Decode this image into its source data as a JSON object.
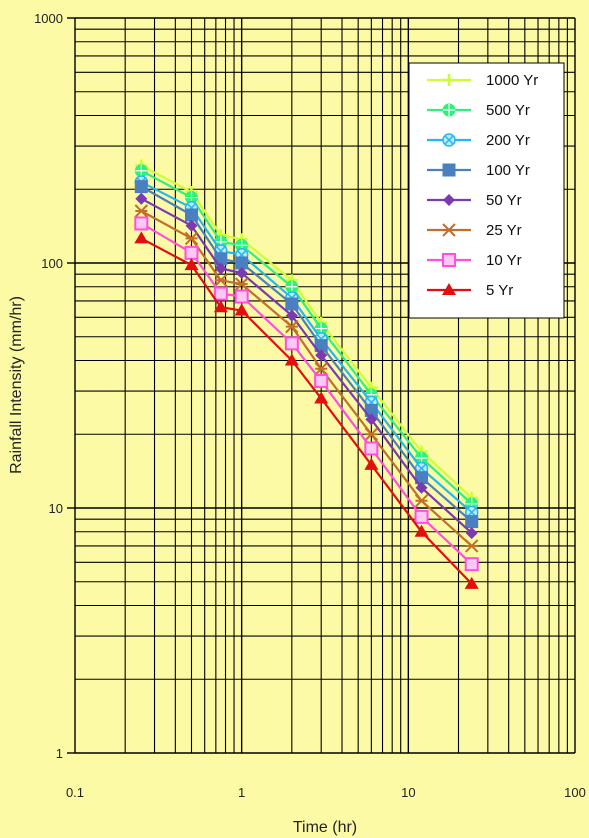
{
  "chart_data": {
    "type": "line",
    "title": "",
    "xlabel": "Time (hr)",
    "ylabel": "Rainfall Intensity (mm/hr)",
    "x_scale": "log",
    "y_scale": "log",
    "xlim": [
      0.1,
      100
    ],
    "ylim": [
      1,
      1000
    ],
    "x_tick_labels": [
      "0.1",
      "1",
      "10",
      "100"
    ],
    "y_tick_labels": [
      "1",
      "10",
      "100",
      "1000"
    ],
    "grid": true,
    "legend_position": "top-right",
    "x": [
      0.25,
      0.5,
      0.75,
      1,
      2,
      3,
      6,
      12,
      24
    ],
    "series": [
      {
        "name": "1000 Yr",
        "color": "#ccff33",
        "marker": "plus",
        "values": [
          250,
          195,
          130,
          125,
          85,
          57,
          31,
          17,
          11
        ]
      },
      {
        "name": "500 Yr",
        "color": "#2ef07a",
        "marker": "circle-plus",
        "values": [
          238,
          185,
          122,
          118,
          80,
          54,
          29,
          16,
          10.4
        ]
      },
      {
        "name": "200 Yr",
        "color": "#22b8f0",
        "marker": "circle-x",
        "values": [
          214,
          168,
          112,
          108,
          72,
          49,
          27,
          14.5,
          9.6
        ]
      },
      {
        "name": "100 Yr",
        "color": "#4a7fc0",
        "marker": "square",
        "values": [
          205,
          157,
          104,
          100,
          68,
          46,
          25,
          13.3,
          8.8
        ]
      },
      {
        "name": "50 Yr",
        "color": "#7a3ab0",
        "marker": "diamond",
        "values": [
          183,
          142,
          95,
          91,
          61,
          42,
          23,
          12.1,
          7.9
        ]
      },
      {
        "name": "25 Yr",
        "color": "#c0702a",
        "marker": "star",
        "values": [
          163,
          126,
          85,
          82,
          55,
          37,
          20,
          10.7,
          7.0
        ]
      },
      {
        "name": "10 Yr",
        "color": "#ff4fdc",
        "marker": "square-open",
        "values": [
          145,
          110,
          75,
          73,
          47,
          33,
          17.5,
          9.2,
          5.9
        ]
      },
      {
        "name": "5 Yr",
        "color": "#e01010",
        "marker": "triangle",
        "values": [
          126,
          98,
          66,
          64,
          40,
          28,
          15.0,
          8.0,
          4.9
        ]
      }
    ]
  }
}
